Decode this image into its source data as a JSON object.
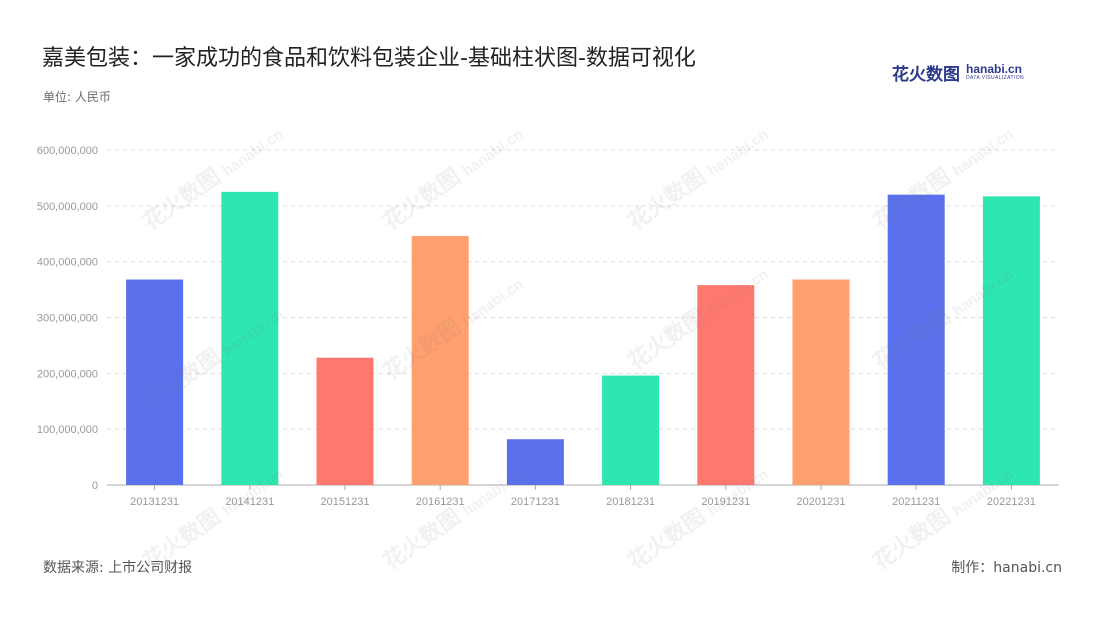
{
  "header": {
    "title": "嘉美包装：一家成功的食品和饮料包装企业-基础柱状图-数据可视化",
    "unit": "单位: 人民币"
  },
  "logo": {
    "cn": "花火数图",
    "en": "hanabi.cn",
    "sub": "DATA VISUALIZATION"
  },
  "watermark": {
    "cn": "花火数图",
    "en": "hanabi.cn"
  },
  "footer": {
    "source": "数据来源: 上市公司财报",
    "credit": "制作：hanabi.cn"
  },
  "colors": {
    "palette": [
      "#5b70ec",
      "#2ee6b0",
      "#ff7870",
      "#ffa06e"
    ],
    "grid": "#dddddd",
    "axis": "#aaaaaa",
    "tick_text": "#999999"
  },
  "chart_data": {
    "type": "bar",
    "categories": [
      "20131231",
      "20141231",
      "20151231",
      "20161231",
      "20171231",
      "20181231",
      "20191231",
      "20201231",
      "20211231",
      "20221231"
    ],
    "values": [
      368000000,
      525000000,
      228000000,
      446000000,
      82000000,
      196000000,
      358000000,
      368000000,
      520000000,
      517000000
    ],
    "ylim": [
      0,
      600000000
    ],
    "yticks": [
      0,
      100000000,
      200000000,
      300000000,
      400000000,
      500000000,
      600000000
    ],
    "ytick_labels": [
      "0",
      "100,000,000",
      "200,000,000",
      "300,000,000",
      "400,000,000",
      "500,000,000",
      "600,000,000"
    ],
    "grid": true,
    "legend": "none"
  }
}
